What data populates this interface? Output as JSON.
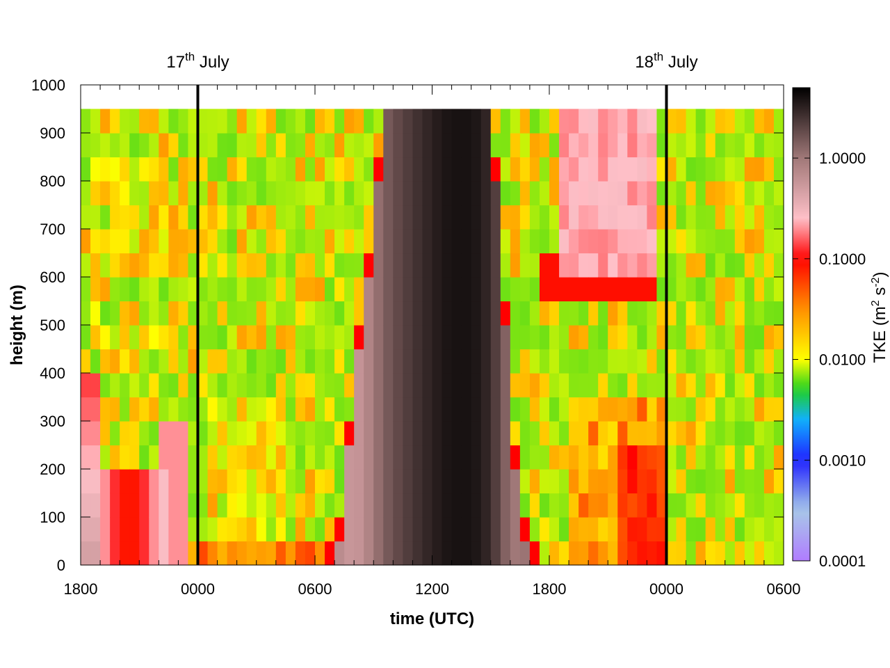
{
  "chart_data": {
    "type": "heatmap",
    "xlabel": "time (UTC)",
    "ylabel": "height (m)",
    "colorbar_label": "TKE (m",
    "colorbar_label_sup1": "2",
    "colorbar_label_mid": " s",
    "colorbar_label_sup2": "-2",
    "colorbar_label_end": ")",
    "x_unit": "hours since 1800 UTC on 16 July",
    "xlim": [
      0,
      36
    ],
    "ylim": [
      0,
      1000
    ],
    "x_ticks": [
      {
        "x": 0,
        "label": "1800"
      },
      {
        "x": 6,
        "label": "0000"
      },
      {
        "x": 12,
        "label": "0600"
      },
      {
        "x": 18,
        "label": "1200"
      },
      {
        "x": 24,
        "label": "1800"
      },
      {
        "x": 30,
        "label": "0000"
      },
      {
        "x": 36,
        "label": "0600"
      }
    ],
    "y_ticks": [
      0,
      100,
      200,
      300,
      400,
      500,
      600,
      700,
      800,
      900,
      1000
    ],
    "colorbar": {
      "scale": "log",
      "range": [
        0.0001,
        5
      ],
      "ticks": [
        {
          "value": 0.0001,
          "label": "0.0001"
        },
        {
          "value": 0.001,
          "label": "0.0010"
        },
        {
          "value": 0.01,
          "label": "0.0100"
        },
        {
          "value": 0.1,
          "label": "0.1000"
        },
        {
          "value": 1,
          "label": "1.0000"
        }
      ],
      "palette": [
        "#b07cff",
        "#a8c8e8",
        "#2020ff",
        "#10b0ff",
        "#20d020",
        "#ffff00",
        "#ff9000",
        "#ff0000",
        "#ffc0c8",
        "#a07878",
        "#000000"
      ]
    },
    "day_markers": [
      {
        "x": 6,
        "day": "17",
        "suffix": "th",
        "month": "July"
      },
      {
        "x": 30,
        "day": "18",
        "suffix": "th",
        "month": "July"
      }
    ],
    "grid": {
      "x_step_hours": 0.5,
      "y_step_m": 50,
      "y_top_m": 950,
      "note": "approximate TKE field: columns = time, rows = height"
    }
  }
}
